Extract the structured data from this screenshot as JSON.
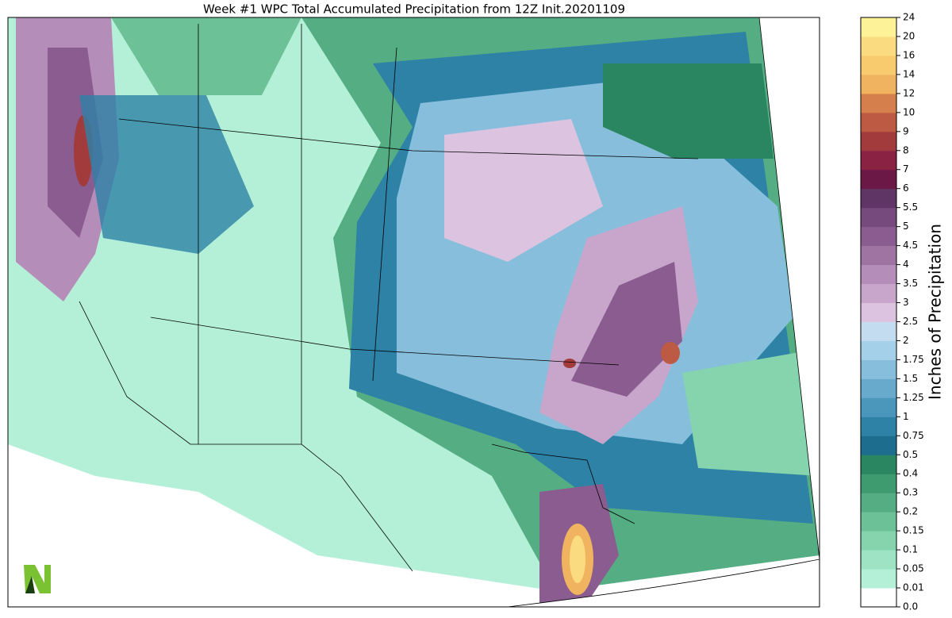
{
  "title": "Week #1 WPC Total Accumulated Precipitation from 12Z Init.20201109",
  "colorbar": {
    "label": "Inches of Precipitation",
    "ticks": [
      {
        "value": 0,
        "label": "0.0"
      },
      0.01,
      0.05,
      0.1,
      0.15,
      0.2,
      0.3,
      0.4,
      0.5,
      0.75,
      1,
      1.25,
      1.5,
      1.75,
      2,
      2.5,
      3,
      3.5,
      4,
      4.5,
      5,
      5.5,
      6,
      7,
      8,
      9,
      10,
      12,
      14,
      16,
      20,
      24
    ],
    "colors": [
      "#ffffff",
      "#b4f0d8",
      "#9ee4c4",
      "#85d4ad",
      "#6cc197",
      "#55ae83",
      "#3e9a6f",
      "#2a8660",
      "#1d6e8e",
      "#2d82a6",
      "#4a97bb",
      "#67aacc",
      "#86bedc",
      "#a5d0ea",
      "#c4dcef",
      "#dcc4e0",
      "#c8a6cc",
      "#b58db9",
      "#9f74a3",
      "#8a5c8f",
      "#764a7d",
      "#5f3565",
      "#6b1847",
      "#8a2244",
      "#a23c3c",
      "#bd5a44",
      "#d5804c",
      "#f0b460",
      "#f7cb6e",
      "#fbdb80",
      "#fdf297"
    ]
  }
}
